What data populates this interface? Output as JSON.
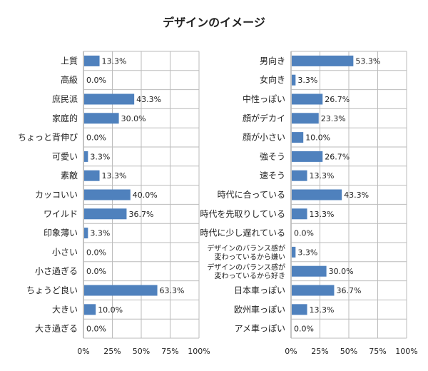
{
  "chart_data": {
    "type": "bar",
    "title": "デザインのイメージ",
    "xlim": [
      0,
      100
    ],
    "ticks": [
      "0%",
      "25%",
      "50%",
      "75%",
      "100%"
    ],
    "bar_color": "#4F81BD",
    "panels": [
      {
        "categories": [
          "上質",
          "高級",
          "庶民派",
          "家庭的",
          "ちょっと背伸び",
          "可愛い",
          "素敵",
          "カッコいい",
          "ワイルド",
          "印象薄い",
          "小さい",
          "小さ過ぎる",
          "ちょうど良い",
          "大きい",
          "大き過ぎる"
        ],
        "values": [
          13.3,
          0.0,
          43.3,
          30.0,
          0.0,
          3.3,
          13.3,
          40.0,
          36.7,
          3.3,
          0.0,
          0.0,
          63.3,
          10.0,
          0.0
        ],
        "labels": [
          "13.3%",
          "0.0%",
          "43.3%",
          "30.0%",
          "0.0%",
          "3.3%",
          "13.3%",
          "40.0%",
          "36.7%",
          "3.3%",
          "0.0%",
          "0.0%",
          "63.3%",
          "10.0%",
          "0.0%"
        ]
      },
      {
        "categories": [
          "男向き",
          "女向き",
          "中性っぽい",
          "顔がデカイ",
          "顔が小さい",
          "強そう",
          "速そう",
          "時代に合っている",
          "時代を先取りしている",
          "時代に少し遅れている",
          "デザインのバランス感が\n変わっているから嫌い",
          "デザインのバランス感が\n変わっているから好き",
          "日本車っぽい",
          "欧州車っぽい",
          "アメ車っぽい"
        ],
        "values": [
          53.3,
          3.3,
          26.7,
          23.3,
          10.0,
          26.7,
          13.3,
          43.3,
          13.3,
          0.0,
          3.3,
          30.0,
          36.7,
          13.3,
          0.0
        ],
        "labels": [
          "53.3%",
          "3.3%",
          "26.7%",
          "23.3%",
          "10.0%",
          "26.7%",
          "13.3%",
          "43.3%",
          "13.3%",
          "0.0%",
          "3.3%",
          "30.0%",
          "36.7%",
          "13.3%",
          "0.0%"
        ]
      }
    ]
  }
}
